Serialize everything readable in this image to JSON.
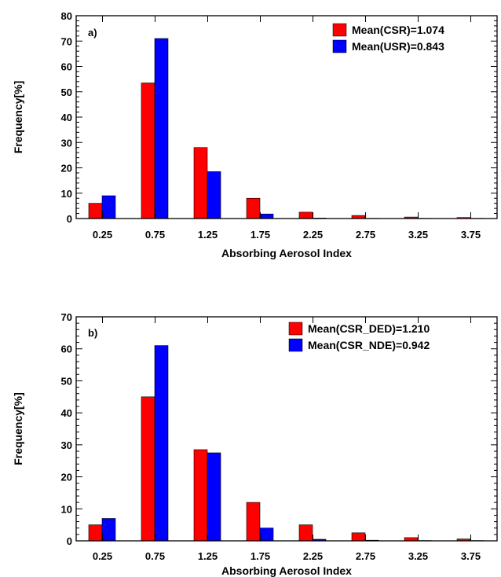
{
  "colors": {
    "series1": "#ff0000",
    "series2": "#0000ff",
    "axis": "#000000"
  },
  "chart_data": [
    {
      "type": "bar",
      "panel_label": "a)",
      "xlabel": "Absorbing Aerosol Index",
      "ylabel": "Frequency[%]",
      "ylim": [
        0,
        80
      ],
      "yticks": [
        0,
        10,
        20,
        30,
        40,
        50,
        60,
        70,
        80
      ],
      "categories": [
        "0.25",
        "0.75",
        "1.25",
        "1.75",
        "2.25",
        "2.75",
        "3.25",
        "3.75"
      ],
      "legend_position": "top-right",
      "series": [
        {
          "name": "Mean(CSR)=1.074",
          "values": [
            6,
            53.5,
            28,
            8,
            2.5,
            1.2,
            0.6,
            0.4
          ]
        },
        {
          "name": "Mean(USR)=0.843",
          "values": [
            9,
            71,
            18.5,
            1.8,
            0.2,
            0.1,
            0.1,
            0.1
          ]
        }
      ]
    },
    {
      "type": "bar",
      "panel_label": "b)",
      "xlabel": "Absorbing Aerosol Index",
      "ylabel": "Frequency[%]",
      "ylim": [
        0,
        70
      ],
      "yticks": [
        0,
        10,
        20,
        30,
        40,
        50,
        60,
        70
      ],
      "categories": [
        "0.25",
        "0.75",
        "1.25",
        "1.75",
        "2.25",
        "2.75",
        "3.25",
        "3.75"
      ],
      "legend_position": "top-right",
      "series": [
        {
          "name": "Mean(CSR_DED)=1.210",
          "values": [
            5,
            45,
            28.5,
            12,
            5,
            2.5,
            1,
            0.6
          ]
        },
        {
          "name": "Mean(CSR_NDE)=0.942",
          "values": [
            7,
            61,
            27.5,
            4,
            0.5,
            0.2,
            0.1,
            0.1
          ]
        }
      ]
    }
  ]
}
